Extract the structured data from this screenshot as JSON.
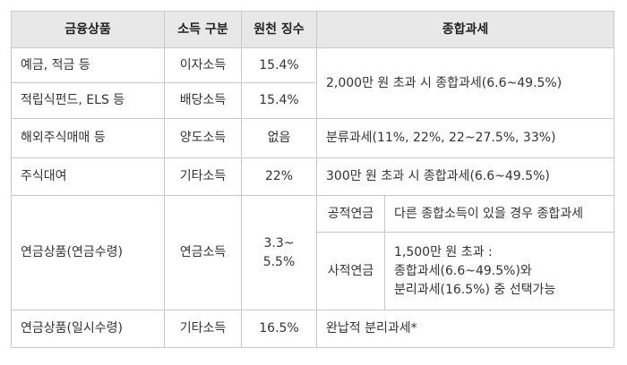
{
  "headers": {
    "product": "금융상품",
    "income_type": "소득 구분",
    "withholding": "원천 징수",
    "comprehensive": "종합과세"
  },
  "rows": [
    {
      "product": "예금, 적금 등",
      "income_type": "이자소득",
      "withholding": "15.4%"
    },
    {
      "product": "적립식펀드, ELS 등",
      "income_type": "배당소득",
      "withholding": "15.4%"
    },
    {
      "product": "해외주식매매 등",
      "income_type": "양도소득",
      "withholding": "없음",
      "tax": "분류과세(11%, 22%, 22~27.5%, 33%)"
    },
    {
      "product": "주식대여",
      "income_type": "기타소득",
      "withholding": "22%",
      "tax": "300만 원 초과 시 종합과세(6.6~49.5%)"
    },
    {
      "product": "연금상품(연금수령)",
      "income_type": "연금소득",
      "withholding_line1": "3.3~",
      "withholding_line2": "5.5%",
      "public_pension": {
        "label": "공적연금",
        "text": "다른 종합소득이 있을 경우 종합과세"
      },
      "private_pension": {
        "label": "사적연금",
        "line1": "1,500만 원 초과 :",
        "line2": "종합과세(6.6~49.5%)와",
        "line3": "분리과세(16.5%) 중 선택가능"
      }
    },
    {
      "product": "연금상품(일시수령)",
      "income_type": "기타소득",
      "withholding": "16.5%",
      "tax": "완납적 분리과세*"
    }
  ],
  "merged_tax_rows_1_2": "2,000만 원 초과 시 종합과세(6.6~49.5%)"
}
